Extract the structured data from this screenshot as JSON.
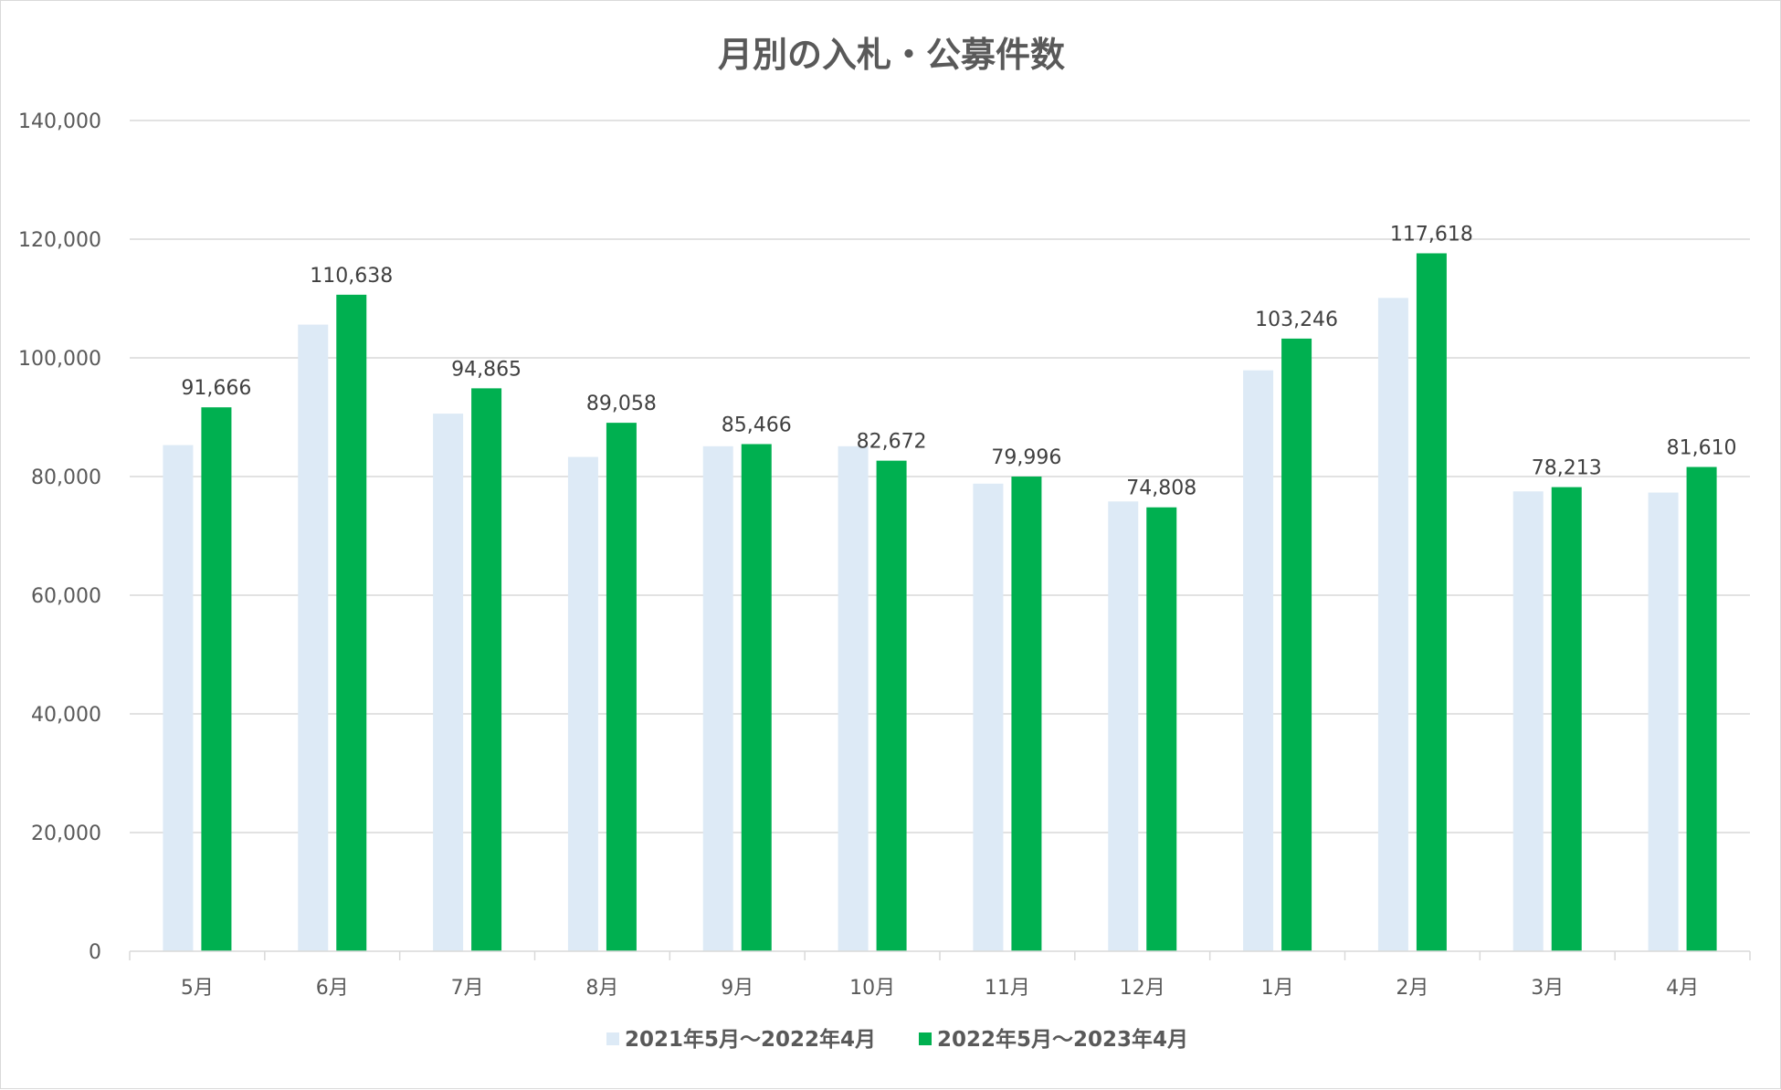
{
  "chart_data": {
    "type": "bar",
    "title": "月別の入札・公募件数",
    "categories": [
      "5月",
      "6月",
      "7月",
      "8月",
      "9月",
      "10月",
      "11月",
      "12月",
      "1月",
      "2月",
      "3月",
      "4月"
    ],
    "series": [
      {
        "name": "2021年5月～2022年4月",
        "color": "#ddeaf6",
        "values": [
          85300,
          105600,
          90600,
          83300,
          85100,
          85100,
          78800,
          75800,
          97900,
          110100,
          77500,
          77300
        ],
        "show_labels": false
      },
      {
        "name": "2022年5月～2023年4月",
        "color": "#00b050",
        "values": [
          91666,
          110638,
          94865,
          89058,
          85466,
          82672,
          79996,
          74808,
          103246,
          117618,
          78213,
          81610
        ],
        "labels": [
          "91,666",
          "110,638",
          "94,865",
          "89,058",
          "85,466",
          "82,672",
          "79,996",
          "74,808",
          "103,246",
          "117,618",
          "78,213",
          "81,610"
        ],
        "show_labels": true
      }
    ],
    "ylim": [
      0,
      140000
    ],
    "yticks": [
      0,
      20000,
      40000,
      60000,
      80000,
      100000,
      120000,
      140000
    ],
    "ytick_labels": [
      "0",
      "20,000",
      "40,000",
      "60,000",
      "80,000",
      "100,000",
      "120,000",
      "140,000"
    ],
    "grid": true,
    "legend_position": "bottom"
  }
}
